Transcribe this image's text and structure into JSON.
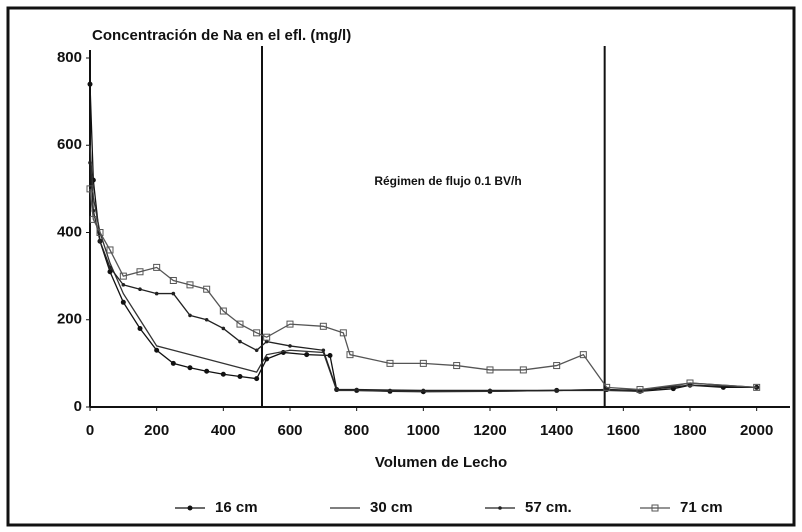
{
  "chart_data": {
    "type": "line",
    "title": "Concentración de Na en el efl. (mg/l)",
    "x_label": "Volumen de Lecho",
    "annotation": "Régimen de flujo 0.1 BV/h",
    "reference_lines": [
      516,
      1544
    ],
    "xlim": [
      0,
      2100
    ],
    "xticks": [
      0,
      200,
      400,
      600,
      800,
      1000,
      1200,
      1400,
      1600,
      1800,
      2000
    ],
    "ylim": [
      0,
      800
    ],
    "yticks": [
      0,
      200,
      400,
      600,
      800
    ],
    "legend": "bottom",
    "series": [
      {
        "name": "16 cm",
        "color": "#111111",
        "marker": "circle",
        "x": [
          0,
          10,
          30,
          60,
          100,
          150,
          200,
          250,
          300,
          350,
          400,
          450,
          500,
          530,
          580,
          650,
          720,
          740,
          800,
          900,
          1000,
          1200,
          1400,
          1550,
          1650,
          1750,
          1800,
          1900,
          2000
        ],
        "values": [
          740,
          520,
          380,
          310,
          240,
          180,
          130,
          100,
          90,
          82,
          75,
          70,
          65,
          110,
          125,
          120,
          118,
          40,
          38,
          36,
          35,
          36,
          38,
          40,
          36,
          42,
          50,
          45,
          45
        ]
      },
      {
        "name": "30 cm",
        "color": "#333333",
        "marker": "none",
        "x": [
          0,
          10,
          30,
          60,
          100,
          150,
          200,
          250,
          300,
          350,
          400,
          450,
          500,
          530,
          600,
          700,
          740,
          800,
          1000,
          1200,
          1400,
          1550,
          1650,
          1800,
          2000
        ],
        "values": [
          600,
          480,
          400,
          330,
          260,
          200,
          140,
          130,
          120,
          110,
          100,
          90,
          80,
          120,
          130,
          125,
          38,
          38,
          36,
          36,
          38,
          38,
          36,
          55,
          45
        ]
      },
      {
        "name": "57 cm.",
        "color": "#222222",
        "marker": "dot",
        "x": [
          0,
          10,
          30,
          60,
          100,
          150,
          200,
          250,
          300,
          350,
          400,
          450,
          500,
          530,
          600,
          700,
          740,
          800,
          1000,
          1200,
          1400,
          1550,
          1650,
          1800,
          2000
        ],
        "values": [
          560,
          450,
          380,
          320,
          280,
          270,
          260,
          260,
          210,
          200,
          180,
          150,
          130,
          150,
          140,
          130,
          40,
          40,
          38,
          38,
          38,
          40,
          38,
          50,
          45
        ]
      },
      {
        "name": "71 cm",
        "color": "#555555",
        "marker": "square",
        "x": [
          0,
          10,
          30,
          60,
          100,
          150,
          200,
          250,
          300,
          350,
          400,
          450,
          500,
          530,
          600,
          700,
          760,
          780,
          900,
          1000,
          1100,
          1200,
          1300,
          1400,
          1480,
          1550,
          1650,
          1800,
          2000
        ],
        "values": [
          500,
          430,
          400,
          360,
          300,
          310,
          320,
          290,
          280,
          270,
          220,
          190,
          170,
          160,
          190,
          185,
          170,
          120,
          100,
          100,
          95,
          85,
          85,
          95,
          120,
          45,
          40,
          55,
          45
        ]
      }
    ]
  }
}
